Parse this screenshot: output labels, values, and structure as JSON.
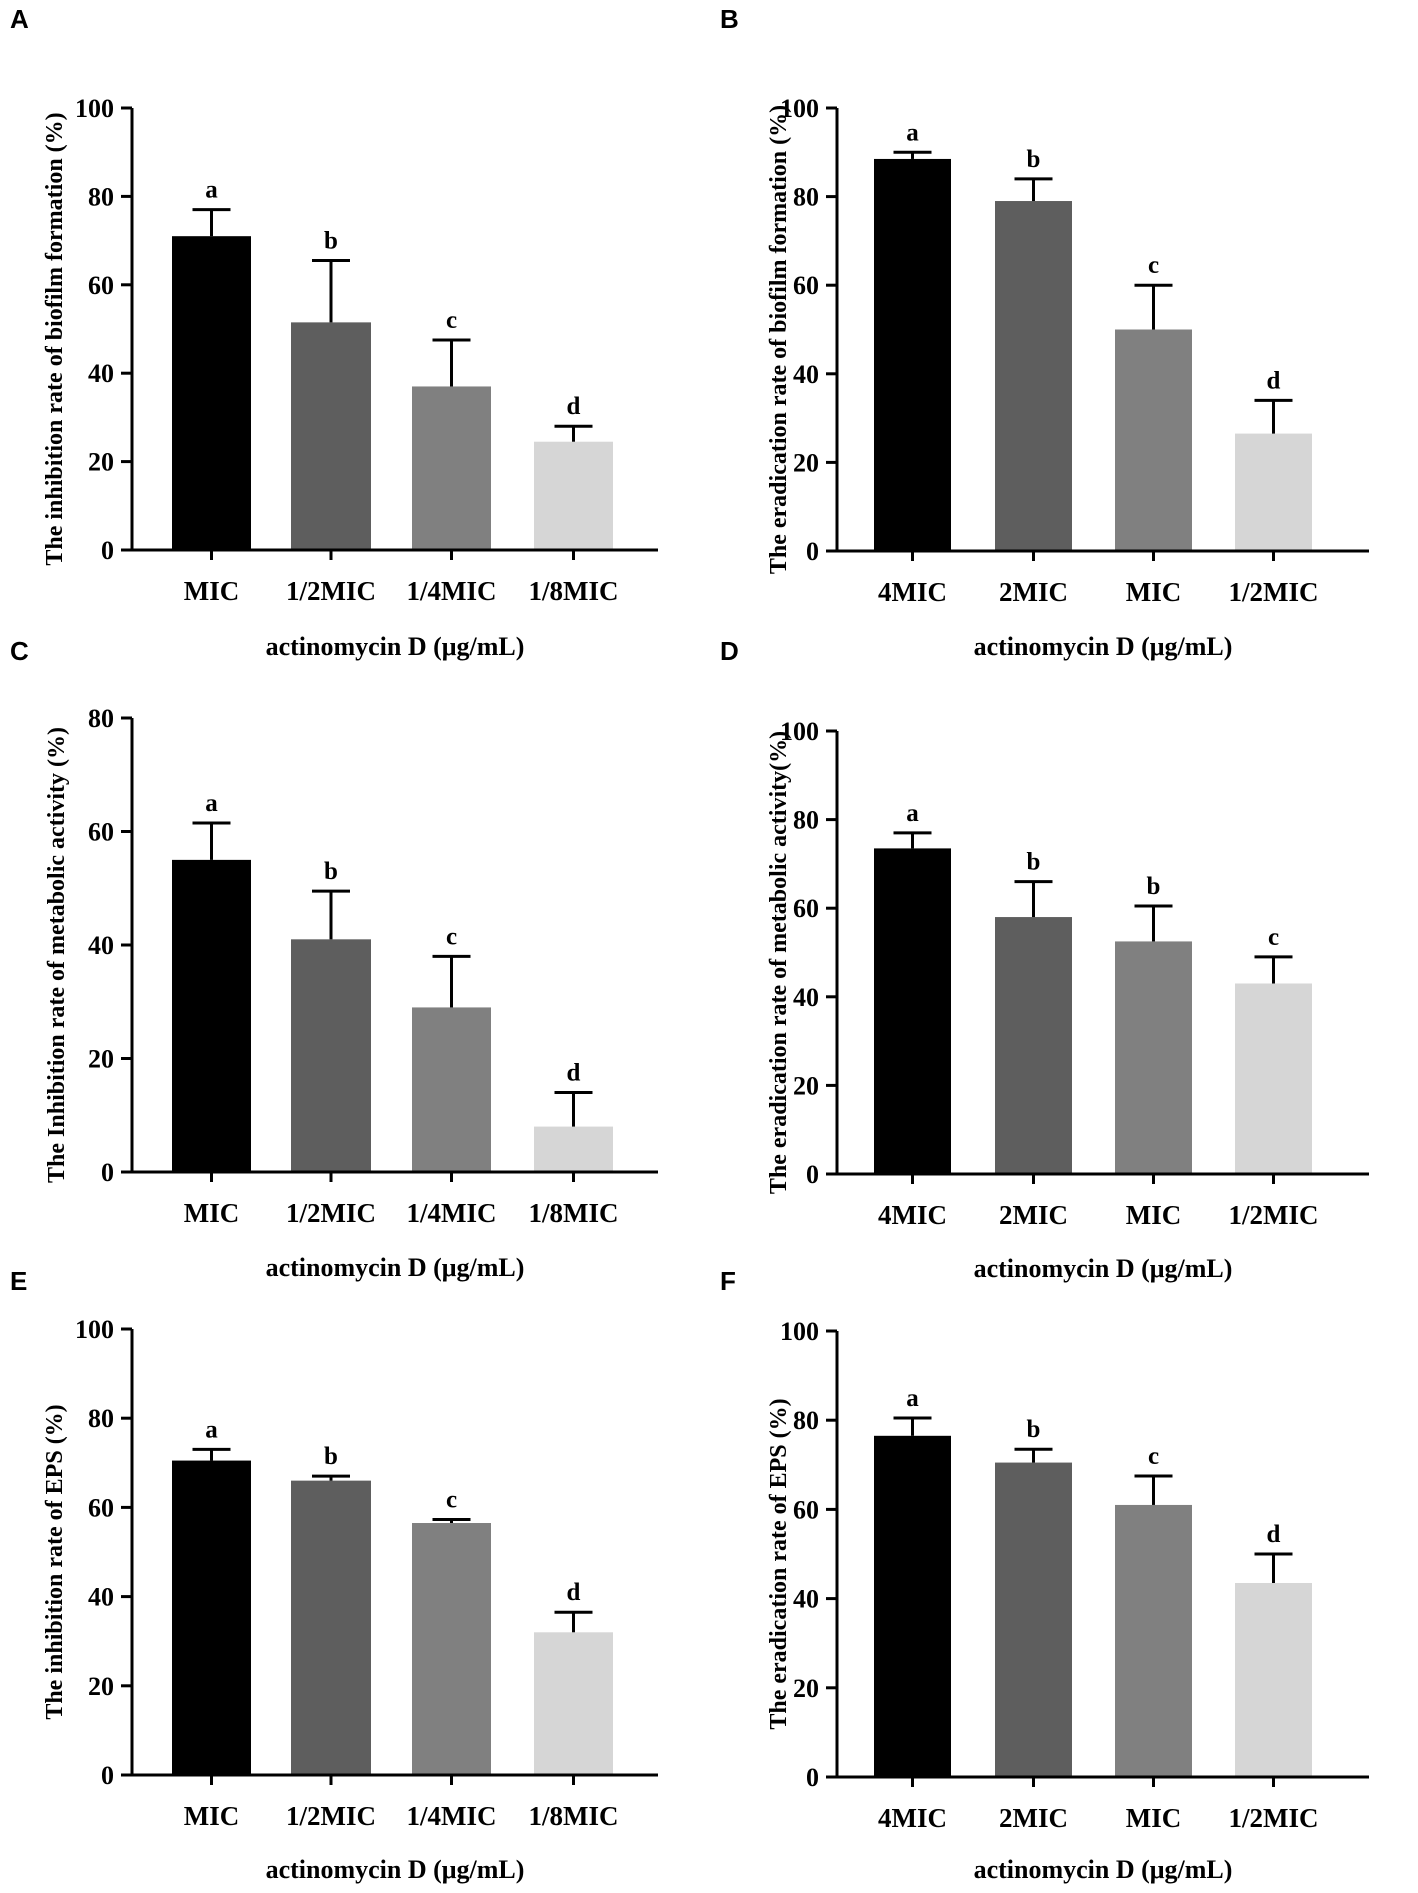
{
  "figure": {
    "colors": [
      "#000000",
      "#5e5e5e",
      "#808080",
      "#d6d6d6"
    ],
    "axis_color": "#000000"
  },
  "chart_data": [
    {
      "panel": "A",
      "type": "bar",
      "title": "",
      "xlabel": "actinomycin D (μg/mL)",
      "ylabel": "The inhibition rate of biofilm formation (%)",
      "ylim": [
        0,
        100
      ],
      "yticks": [
        "0",
        "20",
        "40",
        "60",
        "80",
        "100"
      ],
      "categories": [
        "MIC",
        "1/2MIC",
        "1/4MIC",
        "1/8MIC"
      ],
      "values": [
        71,
        51.5,
        37,
        24.5
      ],
      "errors": [
        6,
        14,
        10.5,
        3.5
      ],
      "labels": [
        "a",
        "b",
        "c",
        "d"
      ]
    },
    {
      "panel": "B",
      "type": "bar",
      "title": "",
      "xlabel": "actinomycin D (μg/mL)",
      "ylabel": "The eradication rate of biofilm formation (%)",
      "ylim": [
        0,
        100
      ],
      "yticks": [
        "0",
        "20",
        "40",
        "60",
        "80",
        "100"
      ],
      "categories": [
        "4MIC",
        "2MIC",
        "MIC",
        "1/2MIC"
      ],
      "values": [
        88.5,
        79,
        50,
        26.5
      ],
      "errors": [
        1.5,
        5,
        10,
        7.5
      ],
      "labels": [
        "a",
        "b",
        "c",
        "d"
      ]
    },
    {
      "panel": "C",
      "type": "bar",
      "title": "",
      "xlabel": "actinomycin D (μg/mL)",
      "ylabel": "The Inhibition rate of metabolic activity (%)",
      "ylim": [
        0,
        80
      ],
      "yticks": [
        "0",
        "20",
        "40",
        "60",
        "80"
      ],
      "categories": [
        "MIC",
        "1/2MIC",
        "1/4MIC",
        "1/8MIC"
      ],
      "values": [
        55,
        41,
        29,
        8
      ],
      "errors": [
        6.5,
        8.5,
        9,
        6
      ],
      "labels": [
        "a",
        "b",
        "c",
        "d"
      ]
    },
    {
      "panel": "D",
      "type": "bar",
      "title": "",
      "xlabel": "actinomycin D (μg/mL)",
      "ylabel": "The eradication rate of metabolic activity(%)",
      "ylim": [
        0,
        100
      ],
      "yticks": [
        "0",
        "20",
        "40",
        "60",
        "80",
        "100"
      ],
      "categories": [
        "4MIC",
        "2MIC",
        "MIC",
        "1/2MIC"
      ],
      "values": [
        73.5,
        58,
        52.5,
        43
      ],
      "errors": [
        3.5,
        8,
        8,
        6
      ],
      "labels": [
        "a",
        "b",
        "b",
        "c"
      ]
    },
    {
      "panel": "E",
      "type": "bar",
      "title": "",
      "xlabel": "actinomycin D (μg/mL)",
      "ylabel": "The inhibition rate of EPS (%)",
      "ylim": [
        0,
        100
      ],
      "yticks": [
        "0",
        "20",
        "40",
        "60",
        "80",
        "100"
      ],
      "categories": [
        "MIC",
        "1/2MIC",
        "1/4MIC",
        "1/8MIC"
      ],
      "values": [
        70.5,
        66,
        56.5,
        32
      ],
      "errors": [
        2.5,
        1,
        0.8,
        4.5
      ],
      "labels": [
        "a",
        "b",
        "c",
        "d"
      ]
    },
    {
      "panel": "F",
      "type": "bar",
      "title": "",
      "xlabel": "actinomycin D (μg/mL)",
      "ylabel": "The eradication rate of EPS (%)",
      "ylim": [
        0,
        100
      ],
      "yticks": [
        "0",
        "20",
        "40",
        "60",
        "80",
        "100"
      ],
      "categories": [
        "4MIC",
        "2MIC",
        "MIC",
        "1/2MIC"
      ],
      "values": [
        76.5,
        70.5,
        61,
        43.5
      ],
      "errors": [
        4,
        3,
        6.5,
        6.5
      ],
      "labels": [
        "a",
        "b",
        "c",
        "d"
      ]
    }
  ]
}
